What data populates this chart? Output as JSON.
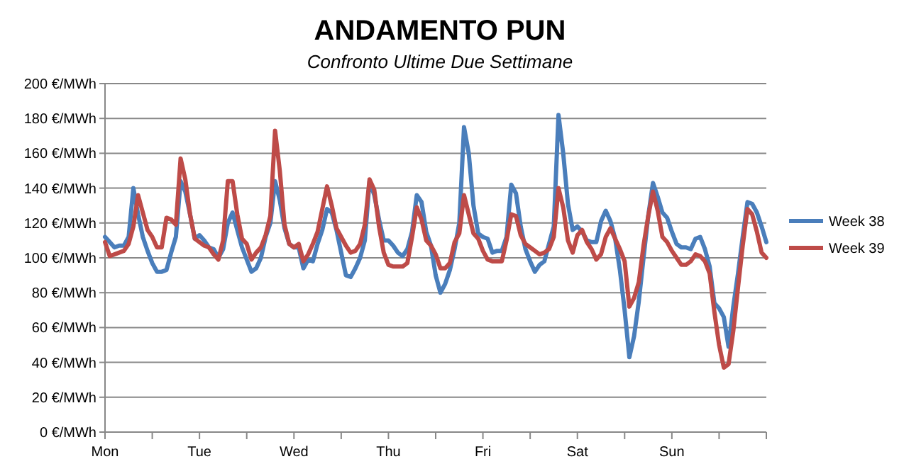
{
  "chart_data": {
    "type": "line",
    "title": "ANDAMENTO PUN",
    "subtitle": "Confronto Ultime Due Settimane",
    "categories": [
      "Mon",
      null,
      null,
      null,
      null,
      null,
      null,
      null,
      null,
      null,
      null,
      null,
      null,
      null,
      null,
      null,
      null,
      null,
      null,
      null,
      "Tue",
      null,
      null,
      null,
      null,
      null,
      null,
      null,
      null,
      null,
      null,
      null,
      null,
      null,
      null,
      null,
      null,
      null,
      null,
      null,
      "Wed",
      null,
      null,
      null,
      null,
      null,
      null,
      null,
      null,
      null,
      null,
      null,
      null,
      null,
      null,
      null,
      null,
      null,
      null,
      null,
      "Thu",
      null,
      null,
      null,
      null,
      null,
      null,
      null,
      null,
      null,
      null,
      null,
      null,
      null,
      null,
      null,
      null,
      null,
      null,
      null,
      "Fri",
      null,
      null,
      null,
      null,
      null,
      null,
      null,
      null,
      null,
      null,
      null,
      null,
      null,
      null,
      null,
      null,
      null,
      null,
      null,
      "Sat",
      null,
      null,
      null,
      null,
      null,
      null,
      null,
      null,
      null,
      null,
      null,
      null,
      null,
      null,
      null,
      null,
      null,
      null,
      null,
      "Sun",
      null,
      null,
      null,
      null,
      null,
      null,
      null,
      null,
      null,
      null,
      null,
      null,
      null,
      null,
      null,
      null,
      null,
      null,
      null,
      null
    ],
    "ylim": [
      0,
      200
    ],
    "yticks": [
      {
        "value": 0,
        "label": "0 €/MWh"
      },
      {
        "value": 20,
        "label": "20 €/MWh"
      },
      {
        "value": 40,
        "label": "40 €/MWh"
      },
      {
        "value": 60,
        "label": "60 €/MWh"
      },
      {
        "value": 80,
        "label": "80 €/MWh"
      },
      {
        "value": 100,
        "label": "100 €/MWh"
      },
      {
        "value": 120,
        "label": "120 €/MWh"
      },
      {
        "value": 140,
        "label": "140 €/MWh"
      },
      {
        "value": 160,
        "label": "160 €/MWh"
      },
      {
        "value": 180,
        "label": "180 €/MWh"
      },
      {
        "value": 200,
        "label": "200 €/MWh"
      }
    ],
    "grid": "y",
    "legend": "right",
    "marker": "none",
    "line_style": "solid",
    "series": [
      {
        "name": "Week 38",
        "color": "#4a7ebb",
        "values": [
          112,
          109,
          106,
          107,
          107,
          112,
          140,
          125,
          112,
          104,
          97,
          92,
          92,
          93,
          103,
          112,
          144,
          138,
          125,
          111,
          113,
          110,
          106,
          105,
          100,
          105,
          120,
          126,
          116,
          106,
          99,
          92,
          94,
          100,
          112,
          120,
          144,
          133,
          117,
          108,
          106,
          106,
          94,
          99,
          98,
          108,
          116,
          128,
          126,
          116,
          103,
          90,
          89,
          94,
          100,
          110,
          144,
          136,
          122,
          110,
          110,
          107,
          103,
          101,
          105,
          115,
          136,
          132,
          115,
          107,
          90,
          80,
          85,
          93,
          105,
          120,
          175,
          160,
          130,
          114,
          112,
          111,
          103,
          104,
          104,
          112,
          142,
          137,
          118,
          105,
          98,
          92,
          96,
          98,
          108,
          118,
          182,
          160,
          131,
          116,
          118,
          115,
          110,
          109,
          109,
          121,
          127,
          121,
          111,
          93,
          70,
          43,
          55,
          75,
          100,
          124,
          143,
          135,
          126,
          123,
          115,
          108,
          106,
          106,
          105,
          111,
          112,
          105,
          95,
          74,
          71,
          66,
          49,
          72,
          91,
          112,
          132,
          131,
          126,
          118,
          109
        ]
      },
      {
        "name": "Week 39",
        "color": "#be4b48",
        "values": [
          109,
          101,
          102,
          103,
          104,
          108,
          118,
          136,
          126,
          116,
          112,
          106,
          106,
          123,
          122,
          119,
          157,
          145,
          125,
          111,
          109,
          107,
          106,
          102,
          99,
          110,
          144,
          144,
          125,
          111,
          108,
          99,
          103,
          106,
          113,
          124,
          173,
          150,
          119,
          108,
          106,
          108,
          98,
          102,
          108,
          115,
          128,
          141,
          130,
          117,
          112,
          107,
          103,
          104,
          108,
          119,
          145,
          139,
          118,
          103,
          96,
          95,
          95,
          95,
          97,
          112,
          129,
          122,
          110,
          107,
          102,
          94,
          94,
          97,
          109,
          114,
          136,
          125,
          114,
          111,
          104,
          99,
          98,
          98,
          98,
          110,
          125,
          124,
          113,
          108,
          106,
          104,
          102,
          103,
          105,
          112,
          140,
          129,
          110,
          103,
          113,
          116,
          109,
          105,
          99,
          102,
          112,
          117,
          111,
          105,
          98,
          72,
          77,
          86,
          107,
          124,
          138,
          127,
          112,
          109,
          104,
          100,
          96,
          96,
          98,
          102,
          101,
          98,
          91,
          69,
          50,
          37,
          39,
          58,
          83,
          107,
          128,
          125,
          115,
          103,
          100
        ]
      }
    ]
  }
}
